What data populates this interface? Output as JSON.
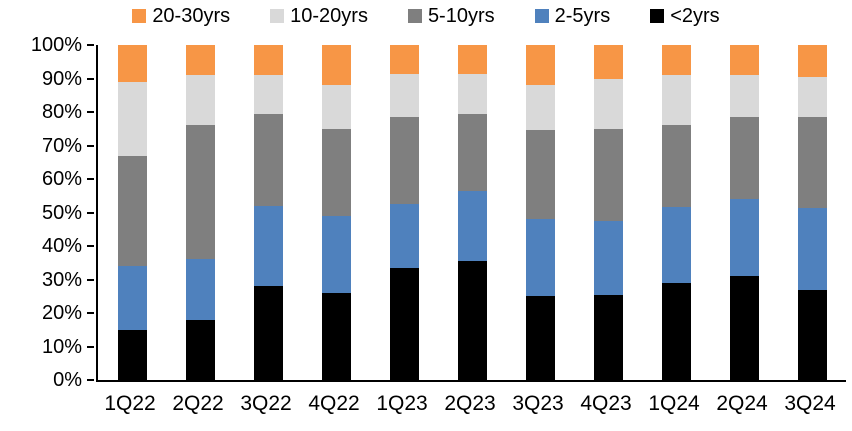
{
  "chart_data": {
    "type": "bar",
    "variant": "stacked-100-percent-column",
    "title": "",
    "xlabel": "",
    "ylabel": "",
    "grid": false,
    "legend_position": "top",
    "categories": [
      "1Q22",
      "2Q22",
      "3Q22",
      "4Q22",
      "1Q23",
      "2Q23",
      "3Q23",
      "4Q23",
      "1Q24",
      "2Q24",
      "3Q24"
    ],
    "series": [
      {
        "name": "<2yrs",
        "color": "#000000",
        "values": [
          15.0,
          18.0,
          28.0,
          26.0,
          33.5,
          35.5,
          25.0,
          25.5,
          29.0,
          31.0,
          27.0
        ]
      },
      {
        "name": "2-5yrs",
        "color": "#4F81BD",
        "values": [
          19.0,
          18.0,
          24.0,
          23.0,
          19.0,
          21.0,
          23.0,
          22.0,
          22.5,
          23.0,
          24.5
        ]
      },
      {
        "name": "5-10yrs",
        "color": "#7F7F7F",
        "values": [
          33.0,
          40.0,
          27.5,
          26.0,
          26.0,
          23.0,
          26.5,
          27.5,
          24.5,
          24.5,
          27.0
        ]
      },
      {
        "name": "10-20yrs",
        "color": "#D9D9D9",
        "values": [
          22.0,
          15.0,
          11.5,
          13.0,
          13.0,
          12.0,
          13.5,
          15.0,
          15.0,
          12.5,
          12.0
        ]
      },
      {
        "name": "20-30yrs",
        "color": "#F79646",
        "values": [
          11.0,
          9.0,
          9.0,
          12.0,
          8.5,
          8.5,
          12.0,
          10.0,
          9.0,
          9.0,
          9.5
        ]
      }
    ],
    "legend_order": [
      "20-30yrs",
      "10-20yrs",
      "5-10yrs",
      "2-5yrs",
      "<2yrs"
    ],
    "y_axis": {
      "min": 0,
      "max": 100,
      "tick_step": 10,
      "tick_labels": [
        "0%",
        "10%",
        "20%",
        "30%",
        "40%",
        "50%",
        "60%",
        "70%",
        "80%",
        "90%",
        "100%"
      ]
    }
  },
  "colors": {
    "axis": "#000000",
    "text": "#000000",
    "background": "#FFFFFF"
  }
}
